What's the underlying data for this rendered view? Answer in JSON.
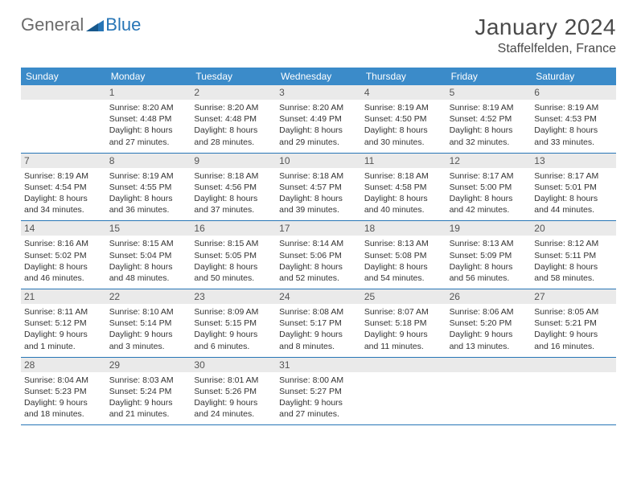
{
  "brand": {
    "part1": "General",
    "part2": "Blue"
  },
  "title": "January 2024",
  "location": "Staffelfelden, France",
  "colors": {
    "header_bg": "#3b8bc9",
    "row_border": "#2775b6",
    "daynum_bg": "#eaeaea",
    "text": "#333333",
    "brand_gray": "#6b6b6b",
    "brand_blue": "#2775b6"
  },
  "weekdays": [
    "Sunday",
    "Monday",
    "Tuesday",
    "Wednesday",
    "Thursday",
    "Friday",
    "Saturday"
  ],
  "weeks": [
    [
      null,
      {
        "n": "1",
        "sr": "8:20 AM",
        "ss": "4:48 PM",
        "dl": "8 hours and 27 minutes."
      },
      {
        "n": "2",
        "sr": "8:20 AM",
        "ss": "4:48 PM",
        "dl": "8 hours and 28 minutes."
      },
      {
        "n": "3",
        "sr": "8:20 AM",
        "ss": "4:49 PM",
        "dl": "8 hours and 29 minutes."
      },
      {
        "n": "4",
        "sr": "8:19 AM",
        "ss": "4:50 PM",
        "dl": "8 hours and 30 minutes."
      },
      {
        "n": "5",
        "sr": "8:19 AM",
        "ss": "4:52 PM",
        "dl": "8 hours and 32 minutes."
      },
      {
        "n": "6",
        "sr": "8:19 AM",
        "ss": "4:53 PM",
        "dl": "8 hours and 33 minutes."
      }
    ],
    [
      {
        "n": "7",
        "sr": "8:19 AM",
        "ss": "4:54 PM",
        "dl": "8 hours and 34 minutes."
      },
      {
        "n": "8",
        "sr": "8:19 AM",
        "ss": "4:55 PM",
        "dl": "8 hours and 36 minutes."
      },
      {
        "n": "9",
        "sr": "8:18 AM",
        "ss": "4:56 PM",
        "dl": "8 hours and 37 minutes."
      },
      {
        "n": "10",
        "sr": "8:18 AM",
        "ss": "4:57 PM",
        "dl": "8 hours and 39 minutes."
      },
      {
        "n": "11",
        "sr": "8:18 AM",
        "ss": "4:58 PM",
        "dl": "8 hours and 40 minutes."
      },
      {
        "n": "12",
        "sr": "8:17 AM",
        "ss": "5:00 PM",
        "dl": "8 hours and 42 minutes."
      },
      {
        "n": "13",
        "sr": "8:17 AM",
        "ss": "5:01 PM",
        "dl": "8 hours and 44 minutes."
      }
    ],
    [
      {
        "n": "14",
        "sr": "8:16 AM",
        "ss": "5:02 PM",
        "dl": "8 hours and 46 minutes."
      },
      {
        "n": "15",
        "sr": "8:15 AM",
        "ss": "5:04 PM",
        "dl": "8 hours and 48 minutes."
      },
      {
        "n": "16",
        "sr": "8:15 AM",
        "ss": "5:05 PM",
        "dl": "8 hours and 50 minutes."
      },
      {
        "n": "17",
        "sr": "8:14 AM",
        "ss": "5:06 PM",
        "dl": "8 hours and 52 minutes."
      },
      {
        "n": "18",
        "sr": "8:13 AM",
        "ss": "5:08 PM",
        "dl": "8 hours and 54 minutes."
      },
      {
        "n": "19",
        "sr": "8:13 AM",
        "ss": "5:09 PM",
        "dl": "8 hours and 56 minutes."
      },
      {
        "n": "20",
        "sr": "8:12 AM",
        "ss": "5:11 PM",
        "dl": "8 hours and 58 minutes."
      }
    ],
    [
      {
        "n": "21",
        "sr": "8:11 AM",
        "ss": "5:12 PM",
        "dl": "9 hours and 1 minute."
      },
      {
        "n": "22",
        "sr": "8:10 AM",
        "ss": "5:14 PM",
        "dl": "9 hours and 3 minutes."
      },
      {
        "n": "23",
        "sr": "8:09 AM",
        "ss": "5:15 PM",
        "dl": "9 hours and 6 minutes."
      },
      {
        "n": "24",
        "sr": "8:08 AM",
        "ss": "5:17 PM",
        "dl": "9 hours and 8 minutes."
      },
      {
        "n": "25",
        "sr": "8:07 AM",
        "ss": "5:18 PM",
        "dl": "9 hours and 11 minutes."
      },
      {
        "n": "26",
        "sr": "8:06 AM",
        "ss": "5:20 PM",
        "dl": "9 hours and 13 minutes."
      },
      {
        "n": "27",
        "sr": "8:05 AM",
        "ss": "5:21 PM",
        "dl": "9 hours and 16 minutes."
      }
    ],
    [
      {
        "n": "28",
        "sr": "8:04 AM",
        "ss": "5:23 PM",
        "dl": "9 hours and 18 minutes."
      },
      {
        "n": "29",
        "sr": "8:03 AM",
        "ss": "5:24 PM",
        "dl": "9 hours and 21 minutes."
      },
      {
        "n": "30",
        "sr": "8:01 AM",
        "ss": "5:26 PM",
        "dl": "9 hours and 24 minutes."
      },
      {
        "n": "31",
        "sr": "8:00 AM",
        "ss": "5:27 PM",
        "dl": "9 hours and 27 minutes."
      },
      null,
      null,
      null
    ]
  ],
  "labels": {
    "sunrise": "Sunrise:",
    "sunset": "Sunset:",
    "daylight": "Daylight:"
  }
}
